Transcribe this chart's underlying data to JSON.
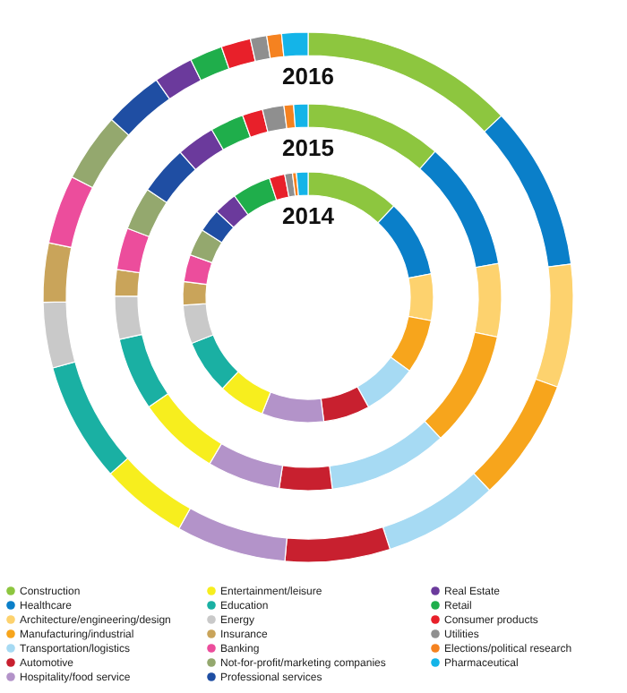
{
  "chart_data": {
    "type": "donut",
    "legend": "bottom",
    "categories": [
      "Construction",
      "Healthcare",
      "Architecture/engineering/design",
      "Manufacturing/industrial",
      "Transportation/logistics",
      "Automotive",
      "Hospitality/food service",
      "Entertainment/leisure",
      "Education",
      "Energy",
      "Insurance",
      "Banking",
      "Not-for-profit/marketing companies",
      "Professional services",
      "Real Estate",
      "Retail",
      "Consumer products",
      "Utilities",
      "Elections/political research",
      "Pharmaceutical"
    ],
    "colors": [
      "#8dc63f",
      "#0a7fc9",
      "#fdd26e",
      "#f7a51c",
      "#a6daf3",
      "#c8202f",
      "#b393c9",
      "#f7ee1e",
      "#1ab0a3",
      "#c9c9c9",
      "#c9a45a",
      "#ec4d9c",
      "#94a86e",
      "#1f4ea3",
      "#6b3a9c",
      "#1fae4b",
      "#e8202a",
      "#8f8f8f",
      "#f58220",
      "#14b4e8"
    ],
    "series": [
      {
        "name": "2016",
        "values": [
          13,
          10,
          7.5,
          7.5,
          7,
          6.4,
          6.7,
          5.3,
          7.3,
          4,
          3.6,
          4.2,
          4.2,
          3.6,
          2.4,
          2,
          1.8,
          1,
          0.9,
          1.6
        ]
      },
      {
        "name": "2015",
        "values": [
          11.4,
          10.8,
          6.1,
          9.7,
          10,
          4.4,
          6.1,
          6.9,
          6.1,
          3.6,
          2.2,
          3.5,
          3.6,
          4.1,
          3.2,
          2.8,
          1.7,
          1.8,
          0.8,
          1.2
        ]
      },
      {
        "name": "2014",
        "values": [
          12,
          10,
          6,
          7,
          7,
          6,
          8,
          6,
          7,
          5,
          3,
          3.5,
          3.5,
          3,
          3,
          5,
          2,
          1,
          0.5,
          1.5
        ]
      }
    ]
  }
}
